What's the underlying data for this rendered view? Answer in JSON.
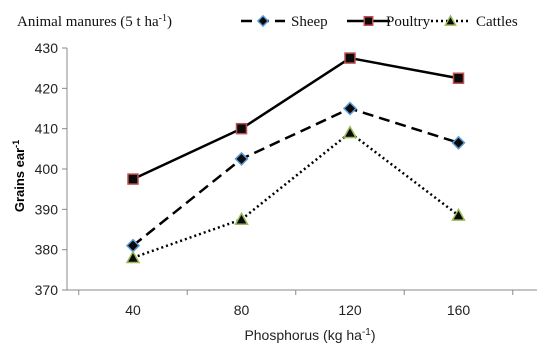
{
  "chart_data": {
    "type": "line",
    "title": "",
    "annotation": {
      "text": "Animal manures (5 t ha",
      "sup": "-1",
      "close": ")"
    },
    "xlabel": {
      "text": "Phosphorus (kg ha",
      "sup": "-1",
      "close": ")"
    },
    "ylabel": {
      "text": "Grains ear",
      "sup": "-1"
    },
    "categories": [
      "40",
      "80",
      "120",
      "160"
    ],
    "ylim": [
      370,
      430
    ],
    "yticks": [
      370,
      380,
      390,
      400,
      410,
      420,
      430
    ],
    "grid": false,
    "legend_position": "top-right",
    "series": [
      {
        "name": "Sheep",
        "values": [
          381,
          402.5,
          415,
          406.5
        ],
        "line_style": "dashed",
        "marker": "diamond",
        "line_color": "#000000",
        "marker_fill": "#0a0a0a",
        "marker_edge": "#5b9bd5"
      },
      {
        "name": "Poultry",
        "values": [
          397.5,
          410,
          427.5,
          422.5
        ],
        "line_style": "solid",
        "marker": "square",
        "line_color": "#000000",
        "marker_fill": "#0a0a0a",
        "marker_edge": "#c0504d"
      },
      {
        "name": "Cattles",
        "values": [
          378,
          387.5,
          409,
          388.5
        ],
        "line_style": "dotted",
        "marker": "triangle",
        "line_color": "#000000",
        "marker_fill": "#0a0a0a",
        "marker_edge": "#9bbb59"
      }
    ]
  }
}
